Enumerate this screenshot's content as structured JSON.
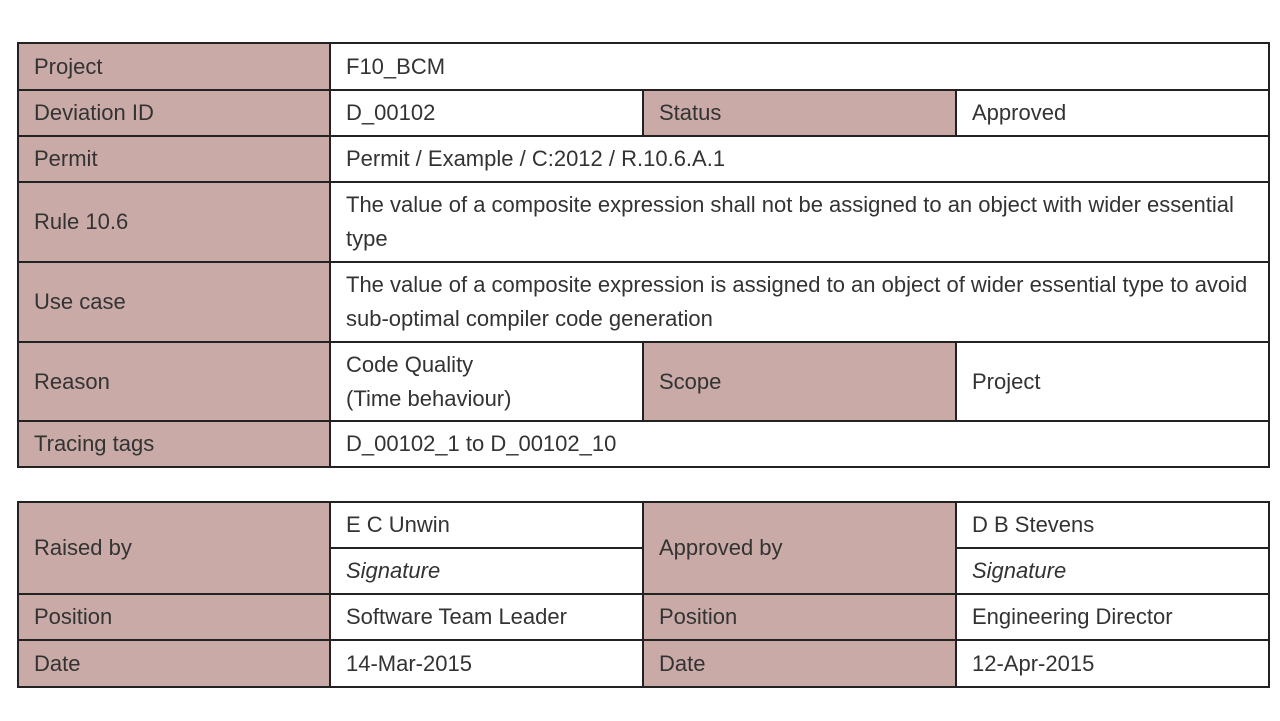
{
  "deviation_table": {
    "rows": [
      [
        "Project",
        "F10_BCM"
      ],
      [
        "Deviation ID",
        "D_00102",
        "Status",
        "Approved"
      ],
      [
        "Permit",
        "Permit / Example / C:2012 / R.10.6.A.1"
      ],
      [
        "Rule 10.6",
        "The value of a composite expression shall not be assigned to an object with wider essential type"
      ],
      [
        "Use case",
        "The value of a composite expression is assigned to an object of wider essential type to avoid sub-optimal compiler code generation"
      ],
      [
        "Reason",
        "Code Quality\n(Time behaviour)",
        "Scope",
        "Project"
      ],
      [
        "Tracing tags",
        "D_00102_1 to D_00102_10"
      ]
    ]
  },
  "signoff_table": {
    "rows": [
      [
        "Raised by",
        "E C Unwin",
        "Approved by",
        "D B Stevens"
      ],
      [
        "Signature",
        "Signature"
      ],
      [
        "Position",
        "Software Team Leader",
        "Position",
        "Engineering Director"
      ],
      [
        "Date",
        "14-Mar-2015",
        "Date",
        "12-Apr-2015"
      ]
    ]
  }
}
